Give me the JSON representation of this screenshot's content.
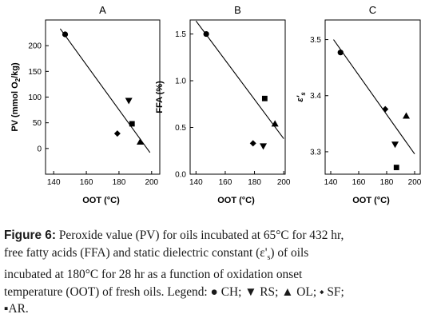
{
  "chart_data": [
    {
      "type": "scatter",
      "title": "A",
      "xlabel": "OOT (°C)",
      "ylabel": "PV (mmol O",
      "ylabel_sub": "2",
      "ylabel_end": "/kg)",
      "xlim": [
        135,
        205
      ],
      "ylim": [
        -50,
        250
      ],
      "xticks": [
        "140",
        "160",
        "180",
        "200"
      ],
      "yticks": [
        "0",
        "50",
        "100",
        "150",
        "200"
      ],
      "points": [
        {
          "name": "CH",
          "marker": "circle",
          "x": 147,
          "y": 222
        },
        {
          "name": "RS",
          "marker": "tri-down",
          "x": 186,
          "y": 93
        },
        {
          "name": "AR",
          "marker": "square",
          "x": 188,
          "y": 48
        },
        {
          "name": "SF",
          "marker": "diamond",
          "x": 179,
          "y": 29
        },
        {
          "name": "OL",
          "marker": "tri-up",
          "x": 193,
          "y": 13
        }
      ],
      "fit_line": {
        "x": [
          144,
          199
        ],
        "y": [
          233,
          -8
        ]
      }
    },
    {
      "type": "scatter",
      "title": "B",
      "xlabel": "OOT (°C)",
      "ylabel": "FFA (%)",
      "xlim": [
        136,
        201
      ],
      "ylim": [
        0,
        1.65
      ],
      "xticks": [
        "140",
        "160",
        "180",
        "200"
      ],
      "yticks": [
        "0.0",
        "0.5",
        "1.0",
        "1.5"
      ],
      "points": [
        {
          "name": "CH",
          "marker": "circle",
          "x": 147,
          "y": 1.5
        },
        {
          "name": "AR",
          "marker": "square",
          "x": 187,
          "y": 0.81
        },
        {
          "name": "OL",
          "marker": "tri-up",
          "x": 194,
          "y": 0.54
        },
        {
          "name": "SF",
          "marker": "diamond",
          "x": 179,
          "y": 0.33
        },
        {
          "name": "RS",
          "marker": "tri-down",
          "x": 186,
          "y": 0.3
        }
      ],
      "fit_line": {
        "x": [
          140,
          200
        ],
        "y": [
          1.64,
          0.38
        ]
      }
    },
    {
      "type": "scatter",
      "title": "C",
      "xlabel": "OOT (°C)",
      "ylabel": "ε'",
      "ylabel_sub": "s",
      "xlim": [
        136,
        204
      ],
      "ylim": [
        3.26,
        3.535
      ],
      "xticks": [
        "140",
        "160",
        "180",
        "200"
      ],
      "yticks": [
        "3.3",
        "3.4",
        "3.5"
      ],
      "points": [
        {
          "name": "CH",
          "marker": "circle",
          "x": 147,
          "y": 3.477
        },
        {
          "name": "SF",
          "marker": "diamond",
          "x": 179,
          "y": 3.376
        },
        {
          "name": "OL",
          "marker": "tri-up",
          "x": 194,
          "y": 3.364
        },
        {
          "name": "RS",
          "marker": "tri-down",
          "x": 186,
          "y": 3.313
        },
        {
          "name": "AR",
          "marker": "square",
          "x": 187,
          "y": 3.272
        }
      ],
      "fit_line": {
        "x": [
          142,
          200
        ],
        "y": [
          3.5,
          3.296
        ]
      }
    }
  ],
  "caption": {
    "label": "Figure 6:",
    "line1": " Peroxide value (PV) for oils incubated at 65°C for 432 hr,",
    "line2": "free fatty acids (FFA) and static dielectric constant (ε'",
    "line2_sub": "s",
    "line2_end": ") of oils",
    "line3": "incubated at 180°C for 28 hr as a function of oxidation onset",
    "line4": "temperature (OOT) of fresh oils. Legend: ● CH; ▼ RS; ▲ OL; ⬩ SF;",
    "line5": "▪AR."
  }
}
